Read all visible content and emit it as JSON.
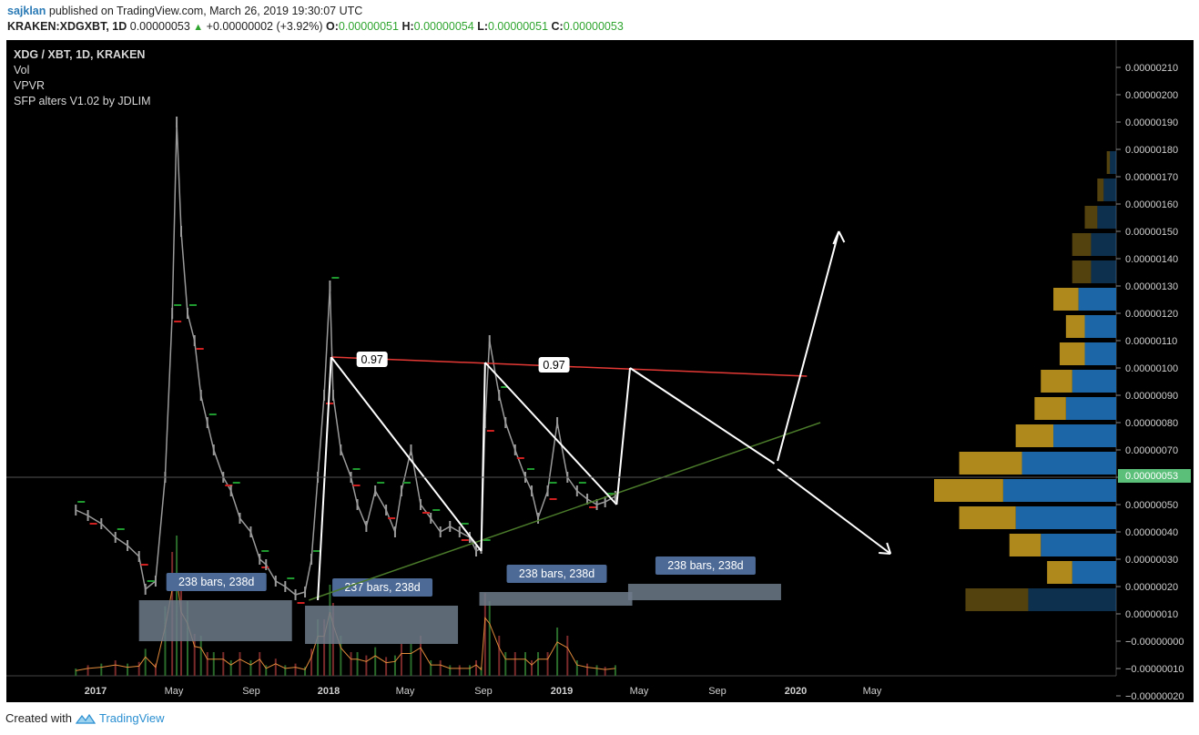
{
  "header": {
    "user": "sajklan",
    "published": "published on TradingView.com, March 26, 2019 19:30:07 UTC",
    "symbol": "KRAKEN:XDGXBT, 1D",
    "last": "0.00000053",
    "change": "+0.00000002 (+3.92%)",
    "o_label": "O:",
    "o": "0.00000051",
    "h_label": "H:",
    "h": "0.00000054",
    "l_label": "L:",
    "l": "0.00000051",
    "c_label": "C:",
    "c": "0.00000053"
  },
  "legend": [
    "XDG / XBT, 1D, KRAKEN",
    "Vol",
    "VPVR",
    "SFP alters V1.02 by JDLIM"
  ],
  "footer": {
    "created": "Created with",
    "brand": "TradingView"
  },
  "colors": {
    "background": "#000000",
    "candle": "#9a9a9a",
    "resistance": "#e53935",
    "support": "#4a7a2a",
    "arrows": "#ffffff",
    "label_box": "#4c6a95",
    "range_box": "#6f7b8b",
    "price_tag": "#5bbf7a",
    "vpvr_up": "#1e6bb0",
    "vpvr_down": "#b8901e",
    "volume_line": "#e08a3a"
  },
  "chart_data": {
    "type": "line",
    "title": "XDG / XBT, 1D, KRAKEN",
    "x_ticks": [
      "2017",
      "May",
      "Sep",
      "2018",
      "May",
      "Sep",
      "2019",
      "May",
      "Sep",
      "2020",
      "May"
    ],
    "y_ticks": [
      "0.00000210",
      "0.00000200",
      "0.00000190",
      "0.00000180",
      "0.00000170",
      "0.00000160",
      "0.00000150",
      "0.00000140",
      "0.00000130",
      "0.00000120",
      "0.00000110",
      "0.00000100",
      "0.00000090",
      "0.00000080",
      "0.00000070",
      "0.00000060",
      "0.00000050",
      "0.00000040",
      "0.00000030",
      "0.00000020",
      "0.00000010",
      "−0.00000000",
      "−0.00000010",
      "−0.00000020"
    ],
    "ylim": [
      -2e-07,
      2.1e-06
    ],
    "last_price": "0.00000053",
    "price_series": {
      "x": [
        "2016-12-01",
        "2016-12-20",
        "2017-01-10",
        "2017-02-01",
        "2017-02-20",
        "2017-03-10",
        "2017-03-20",
        "2017-04-05",
        "2017-04-20",
        "2017-05-01",
        "2017-05-08",
        "2017-05-15",
        "2017-05-25",
        "2017-06-05",
        "2017-06-15",
        "2017-06-25",
        "2017-07-05",
        "2017-07-20",
        "2017-08-01",
        "2017-08-15",
        "2017-09-01",
        "2017-09-15",
        "2017-09-25",
        "2017-10-10",
        "2017-10-25",
        "2017-11-10",
        "2017-11-25",
        "2017-12-05",
        "2017-12-15",
        "2017-12-25",
        "2018-01-03",
        "2018-01-08",
        "2018-01-20",
        "2018-02-05",
        "2018-02-15",
        "2018-03-01",
        "2018-03-15",
        "2018-04-01",
        "2018-04-15",
        "2018-04-25",
        "2018-05-10",
        "2018-05-25",
        "2018-06-10",
        "2018-06-25",
        "2018-07-10",
        "2018-07-25",
        "2018-08-10",
        "2018-08-20",
        "2018-08-28",
        "2018-09-03",
        "2018-09-10",
        "2018-09-25",
        "2018-10-05",
        "2018-10-20",
        "2018-11-05",
        "2018-11-15",
        "2018-11-25",
        "2018-12-10",
        "2018-12-25",
        "2019-01-10",
        "2019-01-25",
        "2019-02-10",
        "2019-02-25",
        "2019-03-10",
        "2019-03-26"
      ],
      "y": [
        4.8e-07,
        4.6e-07,
        4.3e-07,
        3.8e-07,
        3.5e-07,
        3.1e-07,
        1.9e-07,
        2.2e-07,
        6e-07,
        1.2e-06,
        1.9e-06,
        1.5e-06,
        1.2e-06,
        1.1e-06,
        9e-07,
        8e-07,
        7e-07,
        6e-07,
        5.5e-07,
        4.5e-07,
        4e-07,
        3e-07,
        2.8e-07,
        2.2e-07,
        2e-07,
        1.7e-07,
        1.8e-07,
        3e-07,
        6e-07,
        9e-07,
        1.3e-06,
        9e-07,
        7e-07,
        6e-07,
        5e-07,
        4.2e-07,
        5.5e-07,
        4.8e-07,
        4e-07,
        5.5e-07,
        7e-07,
        5e-07,
        4.5e-07,
        4e-07,
        4.2e-07,
        4e-07,
        3.8e-07,
        3.3e-07,
        3.4e-07,
        8e-07,
        1.1e-06,
        9e-07,
        8e-07,
        7e-07,
        6e-07,
        5.5e-07,
        4.5e-07,
        5.5e-07,
        8e-07,
        6e-07,
        5.5e-07,
        5.2e-07,
        5e-07,
        5.1e-07,
        5.3e-07
      ]
    },
    "annotations": {
      "ratio_labels": [
        "0.97",
        "0.97"
      ],
      "range_labels": [
        "238 bars, 238d",
        "237 bars, 238d",
        "238 bars, 238d",
        "238 bars, 238d"
      ]
    },
    "vpvr": {
      "price_levels": [
        1.75e-06,
        1.65e-06,
        1.55e-06,
        1.45e-06,
        1.35e-06,
        1.25e-06,
        1.15e-06,
        1.05e-06,
        9.5e-07,
        8.5e-07,
        7.5e-07,
        6.5e-07,
        5.5e-07,
        4.5e-07,
        3.5e-07,
        2.5e-07,
        1.5e-07
      ],
      "up_volume": [
        1,
        2,
        3,
        4,
        4,
        6,
        5,
        5,
        7,
        8,
        10,
        15,
        18,
        16,
        12,
        7,
        14
      ],
      "down_volume": [
        0.5,
        1,
        2,
        3,
        3,
        4,
        3,
        4,
        5,
        5,
        6,
        10,
        11,
        9,
        5,
        4,
        10
      ]
    },
    "grid": false
  }
}
